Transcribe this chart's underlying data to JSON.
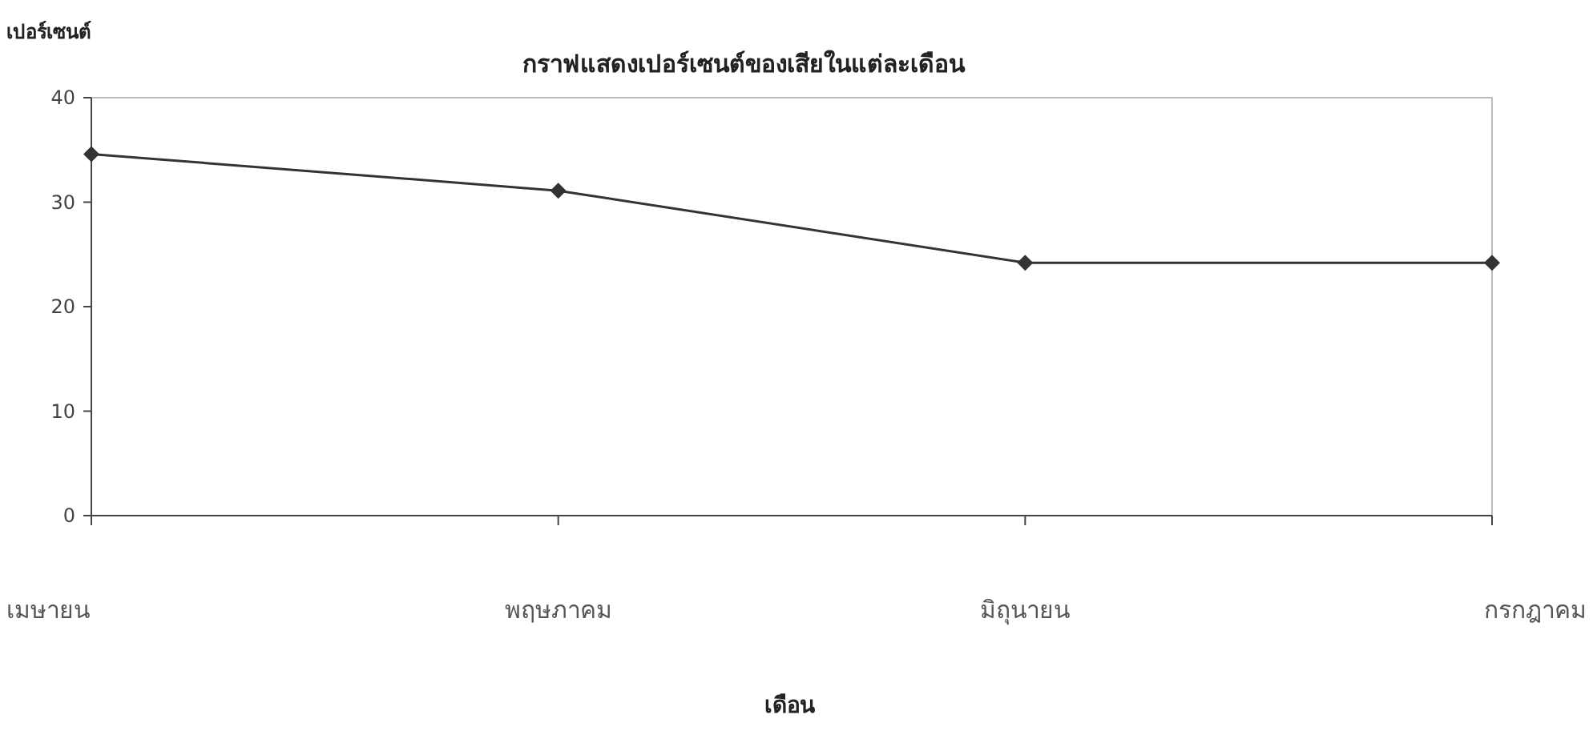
{
  "chart_data": {
    "type": "line",
    "title": "กราฟแสดงเปอร์เซนต์ของเสียในแต่ละเดือน",
    "ylabel": "เปอร์เซนต์",
    "xlabel": "เดือน",
    "categories": [
      "เมษายน",
      "พฤษภาคม",
      "มิถุนายน",
      "กรกฎาคม"
    ],
    "series": [
      {
        "color": "#333333",
        "values": [
          34.6,
          31.1,
          24.2,
          24.2
        ]
      }
    ],
    "ylim": [
      0,
      40
    ],
    "yticks": [
      0,
      10,
      20,
      30,
      40
    ],
    "grid": false,
    "marker": "diamond",
    "line_style": "solid"
  }
}
